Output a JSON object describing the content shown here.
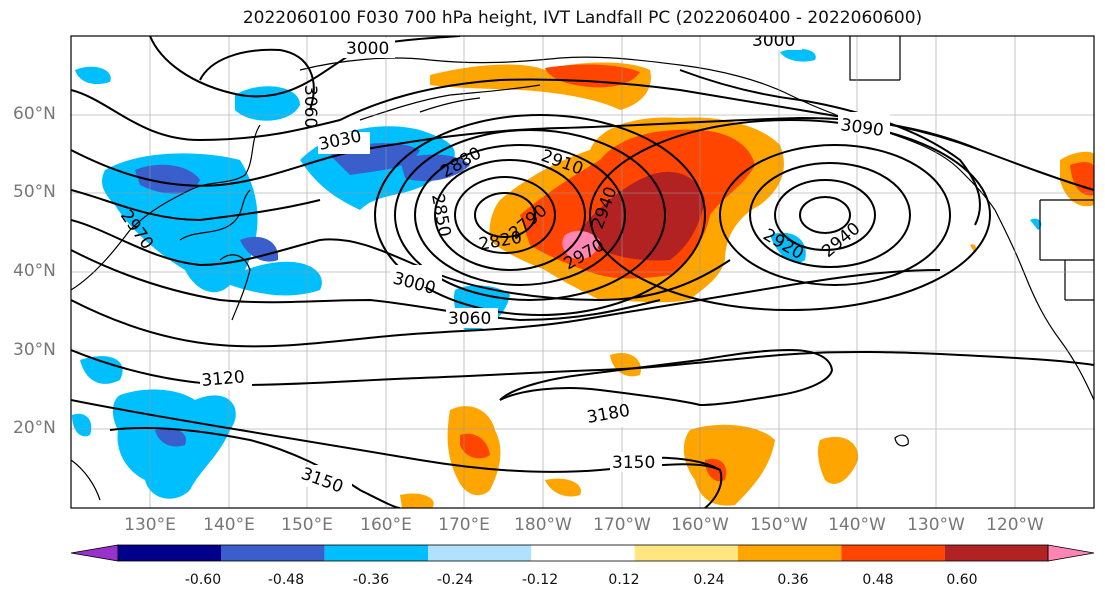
{
  "title": "2022060100 F030 700 hPa height, IVT Landfall PC (2022060400 - 2022060600)",
  "lat_labels": [
    "60°N",
    "50°N",
    "40°N",
    "30°N",
    "20°N"
  ],
  "lon_labels": [
    "130°E",
    "140°E",
    "150°E",
    "160°E",
    "170°E",
    "180°W",
    "170°W",
    "160°W",
    "150°W",
    "140°W",
    "130°W",
    "120°W"
  ],
  "contour_labels": [
    "3000",
    "3000",
    "3060",
    "3030",
    "3090",
    "2910",
    "2880",
    "2850",
    "2820",
    "2790",
    "2940",
    "2970",
    "2970",
    "2920",
    "2940",
    "3000",
    "3060",
    "3120",
    "3180",
    "3150",
    "3150"
  ],
  "colorbar": {
    "ticks": [
      "-0.60",
      "-0.48",
      "-0.36",
      "-0.24",
      "-0.12",
      "0.12",
      "0.24",
      "0.36",
      "0.48",
      "0.60"
    ],
    "colors": [
      "#9932cc",
      "#00008b",
      "#3a5fcd",
      "#00bfff",
      "#b0e2ff",
      "#ffffff",
      "#ffe680",
      "#ffa500",
      "#ff4500",
      "#b22222",
      "#ff85b3"
    ]
  }
}
